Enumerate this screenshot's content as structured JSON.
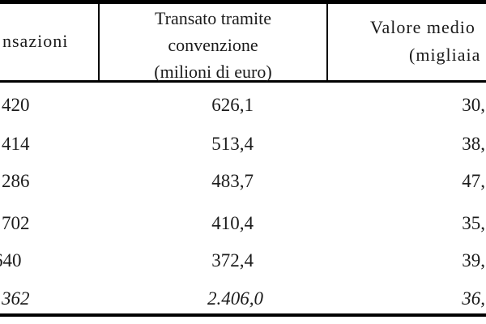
{
  "table": {
    "header": {
      "transazioni": "nsazioni",
      "transato_line1": "Transato tramite",
      "transato_line2": "convenzione",
      "transato_line3": "(milioni di euro)",
      "valore_line1": "Valore medio",
      "valore_line2": "(migliaia"
    },
    "rows": [
      {
        "transazioni": "420",
        "transato": "626,1",
        "valore_medio": "30,"
      },
      {
        "transazioni": "414",
        "transato": "513,4",
        "valore_medio": "38,"
      },
      {
        "transazioni": "286",
        "transato": "483,7",
        "valore_medio": "47,"
      },
      {
        "transazioni": "702",
        "transato": "410,4",
        "valore_medio": "35,"
      },
      {
        "transazioni": "640",
        "transato": "372,4",
        "valore_medio": "39,"
      },
      {
        "transazioni": "362",
        "transato": "2.406,0",
        "valore_medio": "36,"
      }
    ],
    "colors": {
      "text": "#1b1b1b",
      "rule": "#000000",
      "background": "#ffffff"
    }
  }
}
